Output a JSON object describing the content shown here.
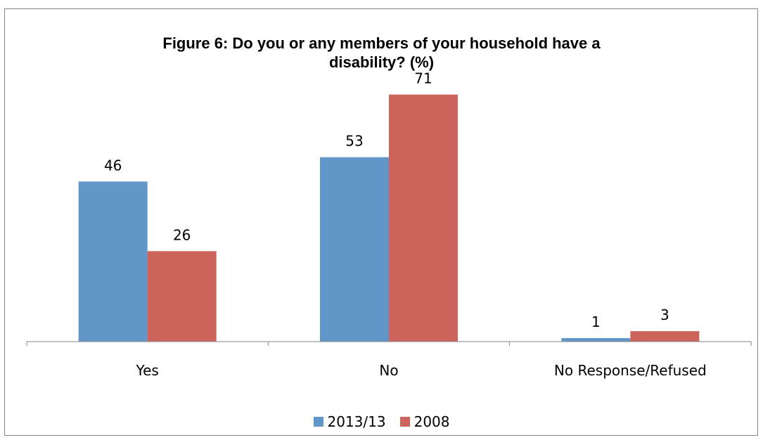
{
  "chart_data": {
    "type": "bar",
    "title_lines": [
      "Figure 6: Do you or any members of your household have a",
      "disability? (%)"
    ],
    "categories": [
      "Yes",
      "No",
      "No Response/Refused"
    ],
    "series": [
      {
        "name": "2013/13",
        "values": [
          46,
          53,
          1
        ],
        "color": "#6096C8"
      },
      {
        "name": "2008",
        "values": [
          26,
          71,
          3
        ],
        "color": "#CC645C"
      }
    ],
    "ylim": [
      0,
      80
    ],
    "grid": false,
    "legend_position": "bottom"
  }
}
